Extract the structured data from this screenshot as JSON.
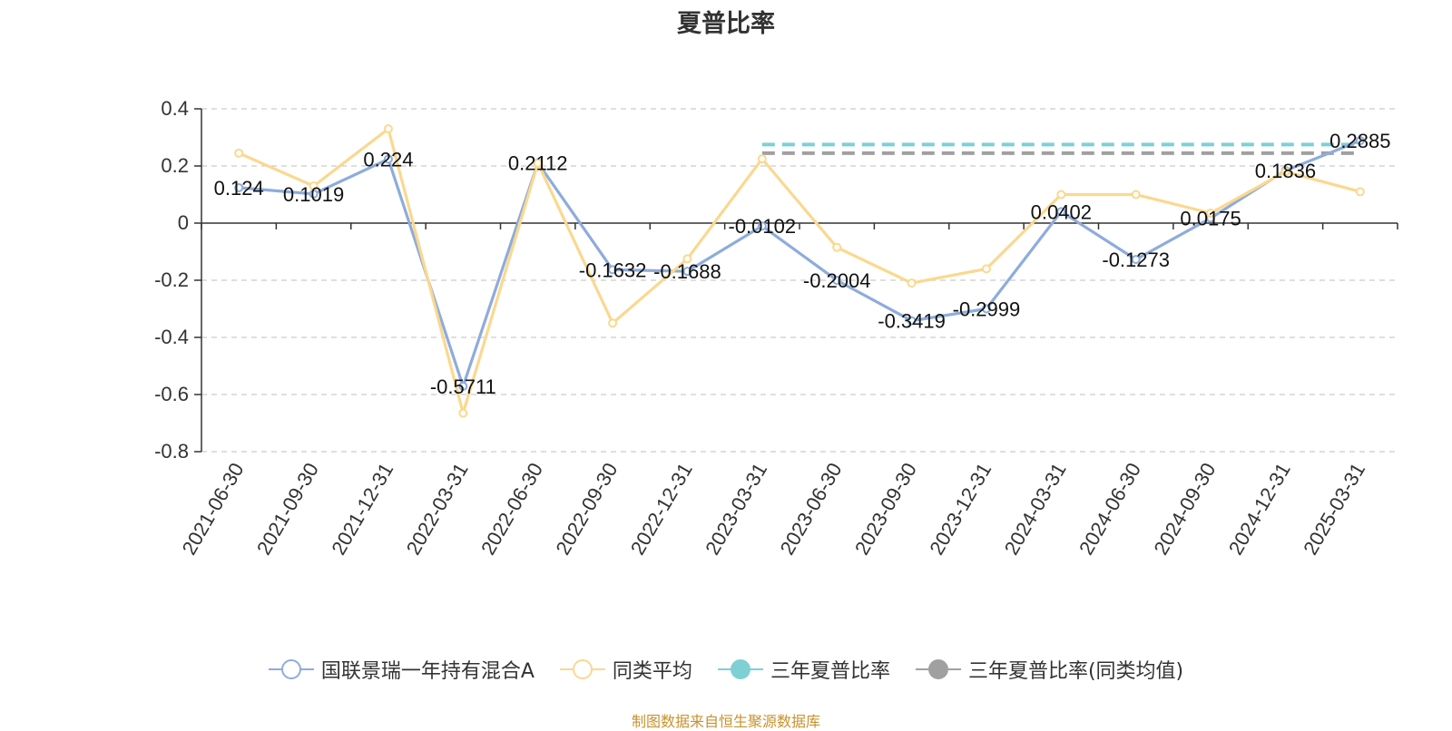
{
  "chart_data": {
    "type": "line",
    "title": "夏普比率",
    "xlabel": "",
    "ylabel": "",
    "ylim": [
      -0.8,
      0.4
    ],
    "y_ticks": [
      "-0.8",
      "-0.6",
      "-0.4",
      "-0.2",
      "0",
      "0.2",
      "0.4"
    ],
    "grid": true,
    "categories": [
      "2021-06-30",
      "2021-09-30",
      "2021-12-31",
      "2022-03-31",
      "2022-06-30",
      "2022-09-30",
      "2022-12-31",
      "2023-03-31",
      "2023-06-30",
      "2023-09-30",
      "2023-12-31",
      "2024-03-31",
      "2024-06-30",
      "2024-09-30",
      "2024-12-31",
      "2025-03-31"
    ],
    "series": [
      {
        "name": "国联景瑞一年持有混合A",
        "color": "#8eacdb",
        "values": [
          0.124,
          0.1019,
          0.224,
          -0.5711,
          0.2112,
          -0.1632,
          -0.1688,
          -0.0102,
          -0.2004,
          -0.3419,
          -0.2999,
          0.0402,
          -0.1273,
          0.0175,
          0.1836,
          0.2885
        ],
        "labels": [
          "0.124",
          "0.1019",
          "0.224",
          "-0.5711",
          "0.2112",
          "-0.1632",
          "-0.1688",
          "-0.0102",
          "-0.2004",
          "-0.3419",
          "-0.2999",
          "0.0402",
          "-0.1273",
          "0.0175",
          "0.1836",
          "0.2885"
        ]
      },
      {
        "name": "同类平均",
        "color": "#fbd88f",
        "values": [
          0.245,
          0.13,
          0.33,
          -0.665,
          0.21,
          -0.35,
          -0.125,
          0.225,
          -0.085,
          -0.21,
          -0.16,
          0.1,
          0.1,
          0.035,
          0.18,
          0.11
        ]
      }
    ],
    "reference_lines": [
      {
        "name": "三年夏普比率",
        "color": "#7ed0d5",
        "value": 0.275,
        "from_category": "2023-03-31"
      },
      {
        "name": "三年夏普比率(同类均值)",
        "color": "#a0a0a0",
        "value": 0.245,
        "from_category": "2023-03-31"
      }
    ],
    "legend_position": "bottom",
    "source_note": "制图数据来自恒生聚源数据库"
  }
}
